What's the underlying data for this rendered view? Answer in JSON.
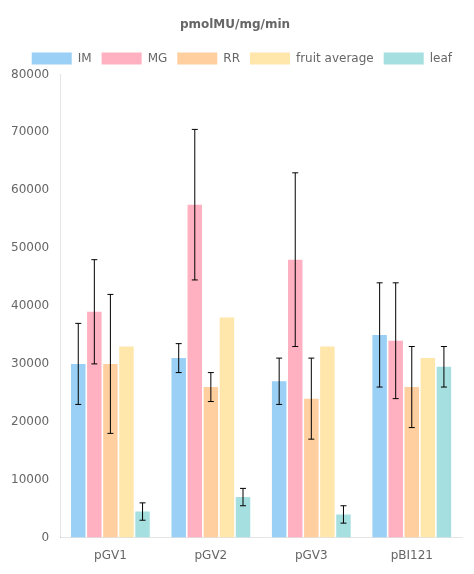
{
  "chart_data": {
    "type": "bar",
    "title": "pmolMU/mg/min",
    "categories": [
      "pGV1",
      "pGV2",
      "pGV3",
      "pBI121"
    ],
    "series": [
      {
        "name": "IM",
        "values": [
          30000,
          31000,
          27000,
          35000
        ],
        "errors": [
          7000,
          2500,
          4000,
          9000
        ]
      },
      {
        "name": "MG",
        "values": [
          39000,
          57500,
          48000,
          34000
        ],
        "errors": [
          9000,
          13000,
          15000,
          10000
        ]
      },
      {
        "name": "RR",
        "values": [
          30000,
          26000,
          24000,
          26000
        ],
        "errors": [
          12000,
          2500,
          7000,
          7000
        ]
      },
      {
        "name": "fruit average",
        "values": [
          33000,
          38000,
          33000,
          31000
        ],
        "errors": [
          0,
          0,
          0,
          0
        ]
      },
      {
        "name": "leaf",
        "values": [
          4500,
          7000,
          4000,
          29500
        ],
        "errors": [
          1500,
          1500,
          1500,
          3500
        ]
      }
    ],
    "ylim": [
      0,
      80000
    ],
    "yticks": [
      0,
      10000,
      20000,
      30000,
      40000,
      50000,
      60000,
      70000,
      80000
    ],
    "grid": false,
    "legend": "upper right"
  }
}
